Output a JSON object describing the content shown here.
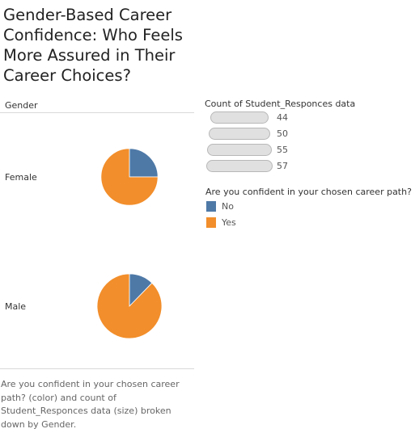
{
  "title": "Gender-Based Career Confidence: Who Feels More Assured in Their Career Choices?",
  "row_header": "Gender",
  "caption": "Are you confident in your chosen career path? (color) and count of Student_Responces data (size) broken down by Gender.",
  "size_legend": {
    "title": "Count of Student_Responces data",
    "values": [
      "44",
      "50",
      "55",
      "57"
    ]
  },
  "color_legend": {
    "title": "Are you confident in your chosen career path?",
    "items": [
      {
        "label": "No",
        "color": "#4e79a7"
      },
      {
        "label": "Yes",
        "color": "#f28e2b"
      }
    ]
  },
  "chart_data": {
    "type": "pie",
    "encoding": {
      "color": "Are you confident in your chosen career path?",
      "size": "Count of Student_Responces data"
    },
    "rows": [
      {
        "gender": "Female",
        "total": 44,
        "slices": [
          {
            "label": "No",
            "value": 11
          },
          {
            "label": "Yes",
            "value": 33
          }
        ]
      },
      {
        "gender": "Male",
        "total": 57,
        "slices": [
          {
            "label": "No",
            "value": 7
          },
          {
            "label": "Yes",
            "value": 50
          }
        ]
      }
    ]
  }
}
